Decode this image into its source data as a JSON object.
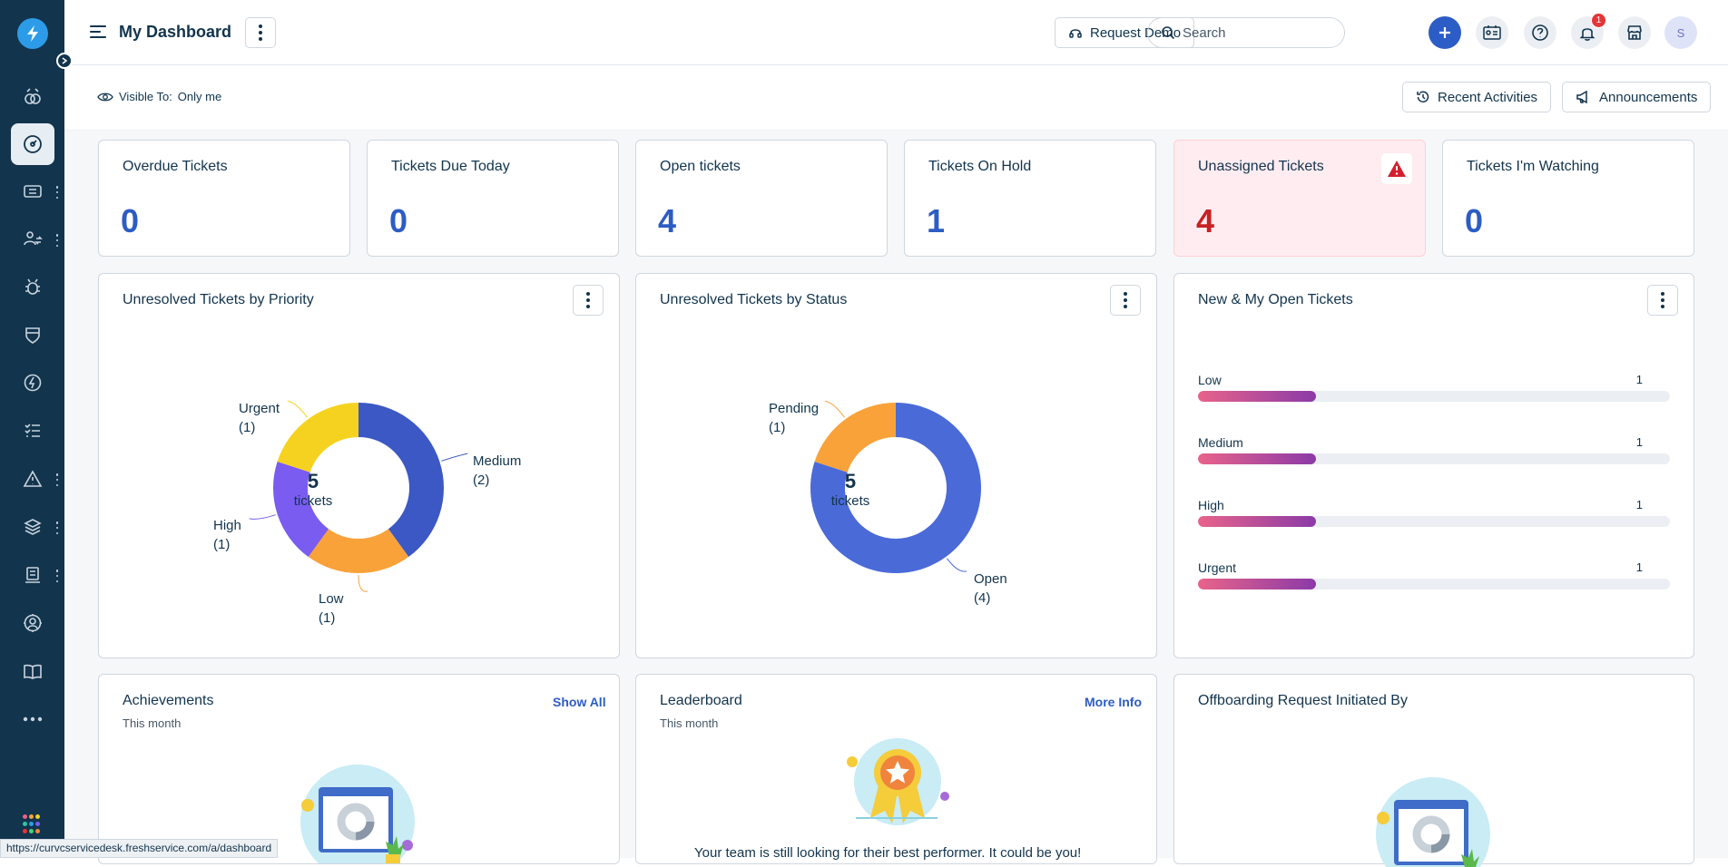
{
  "header": {
    "title": "My Dashboard",
    "request_demo": "Request Demo",
    "search_placeholder": "Search",
    "notification_count": "1",
    "avatar_initial": "S"
  },
  "subheader": {
    "visible_to_label": "Visible To:",
    "visible_to_value": "Only me",
    "recent_activities": "Recent Activities",
    "announcements": "Announcements"
  },
  "stats": [
    {
      "title": "Overdue Tickets",
      "value": "0"
    },
    {
      "title": "Tickets Due Today",
      "value": "0"
    },
    {
      "title": "Open tickets",
      "value": "4"
    },
    {
      "title": "Tickets On Hold",
      "value": "1"
    },
    {
      "title": "Unassigned Tickets",
      "value": "4"
    },
    {
      "title": "Tickets I'm Watching",
      "value": "0"
    }
  ],
  "widgets": {
    "priority": {
      "title": "Unresolved Tickets by Priority",
      "center_value": "5",
      "center_unit": "tickets",
      "labels": {
        "urgent_name": "Urgent",
        "urgent_count": "(1)",
        "medium_name": "Medium",
        "medium_count": "(2)",
        "high_name": "High",
        "high_count": "(1)",
        "low_name": "Low",
        "low_count": "(1)"
      }
    },
    "status": {
      "title": "Unresolved Tickets by Status",
      "center_value": "5",
      "center_unit": "tickets",
      "labels": {
        "pending_name": "Pending",
        "pending_count": "(1)",
        "open_name": "Open",
        "open_count": "(4)"
      }
    },
    "new_open": {
      "title": "New & My Open Tickets",
      "rows": [
        {
          "label": "Low",
          "count": "1"
        },
        {
          "label": "Medium",
          "count": "1"
        },
        {
          "label": "High",
          "count": "1"
        },
        {
          "label": "Urgent",
          "count": "1"
        }
      ]
    },
    "achievements": {
      "title": "Achievements",
      "subtitle": "This month",
      "link": "Show All"
    },
    "leaderboard": {
      "title": "Leaderboard",
      "subtitle": "This month",
      "link": "More Info",
      "message": "Your team is still looking for their best performer. It could be you!"
    },
    "offboarding": {
      "title": "Offboarding Request Initiated By"
    }
  },
  "status_bar": {
    "url": "https://curvcservicedesk.freshservice.com/a/dashboard"
  },
  "chart_data": [
    {
      "type": "pie",
      "title": "Unresolved Tickets by Priority",
      "categories": [
        "Medium",
        "Low",
        "High",
        "Urgent"
      ],
      "values": [
        2,
        1,
        1,
        1
      ],
      "colors": [
        "#3b58c4",
        "#f9a23a",
        "#7a5cf0",
        "#f5d21f"
      ],
      "center_text": "5 tickets"
    },
    {
      "type": "pie",
      "title": "Unresolved Tickets by Status",
      "categories": [
        "Open",
        "Pending"
      ],
      "values": [
        4,
        1
      ],
      "colors": [
        "#4a6ad8",
        "#f9a23a"
      ],
      "center_text": "5 tickets"
    },
    {
      "type": "bar",
      "title": "New & My Open Tickets",
      "categories": [
        "Low",
        "Medium",
        "High",
        "Urgent"
      ],
      "values": [
        1,
        1,
        1,
        1
      ]
    }
  ]
}
